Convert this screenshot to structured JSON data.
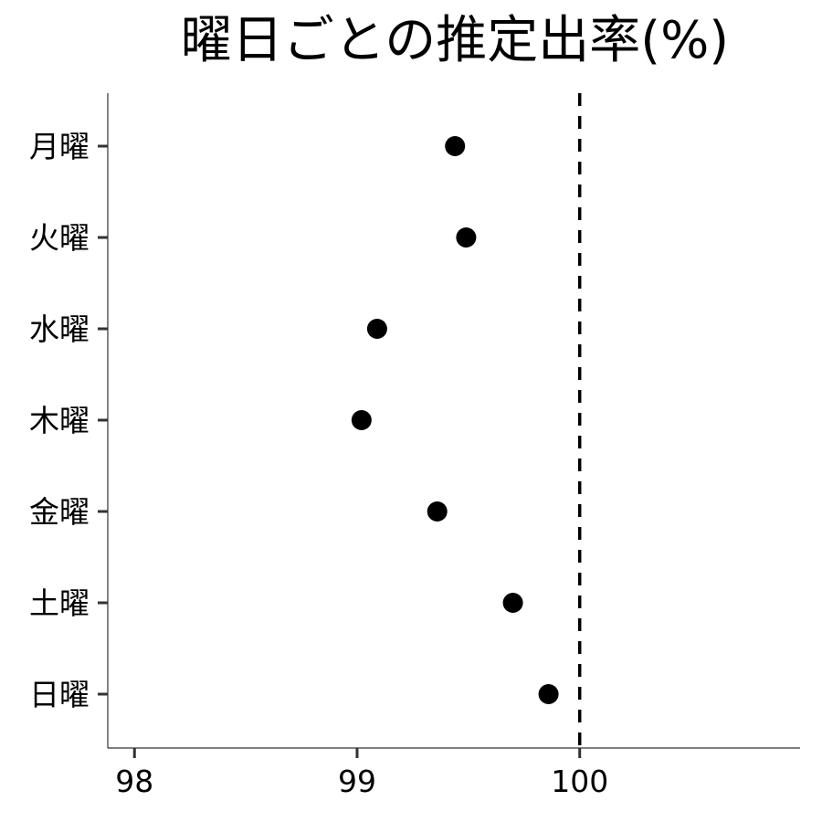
{
  "chart_data": {
    "type": "scatter",
    "title": "曜日ごとの推定出率(%)",
    "xlabel": "",
    "ylabel": "",
    "categories": [
      "月曜",
      "火曜",
      "水曜",
      "木曜",
      "金曜",
      "土曜",
      "日曜"
    ],
    "values": [
      99.44,
      99.49,
      99.09,
      99.02,
      99.36,
      99.7,
      99.86
    ],
    "xlim": [
      97.88,
      100.99
    ],
    "xticks": [
      "98",
      "99",
      "100"
    ],
    "reference_line": {
      "x": 100,
      "style": "dashed"
    },
    "grid": false,
    "legend": "none",
    "colors": {
      "points": "#000000",
      "axis": "#333333",
      "reference": "#000000"
    }
  }
}
